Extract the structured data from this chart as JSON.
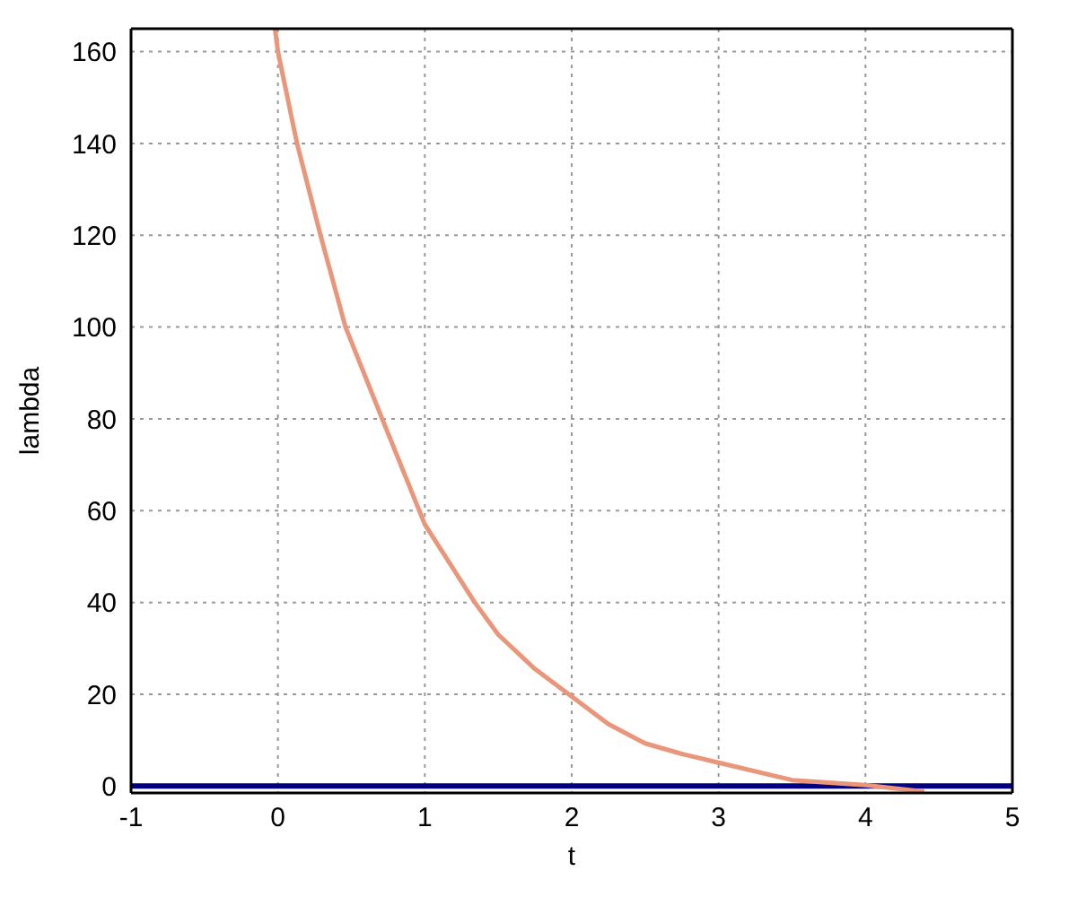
{
  "chart_data": {
    "type": "line",
    "xlabel": "t",
    "ylabel": "lambda",
    "x": [
      -0.02,
      0,
      0.13,
      0.29,
      0.46,
      0.71,
      1,
      1.34,
      1.5,
      1.75,
      1.98,
      2.25,
      2.5,
      2.75,
      3,
      3.5,
      4,
      4.4
    ],
    "series": [
      {
        "color": "#e9967a",
        "values": [
          165,
          160,
          140,
          120,
          100,
          80,
          57,
          40,
          33,
          25.5,
          20,
          13.5,
          9.3,
          7,
          5.1,
          1.3,
          0.2,
          -1.2
        ]
      }
    ],
    "xlim": [
      -1,
      5
    ],
    "xticks": [
      -1,
      0,
      1,
      2,
      3,
      4,
      5
    ],
    "ylim": [
      -1.5,
      165
    ],
    "yticks": [
      0,
      20,
      40,
      60,
      80,
      100,
      120,
      140,
      160
    ],
    "grid": true,
    "marker": "none",
    "line_style": "solid",
    "legend": false,
    "ref_lines": [
      {
        "axis": "y",
        "value": 0,
        "color": "#000080"
      }
    ]
  }
}
